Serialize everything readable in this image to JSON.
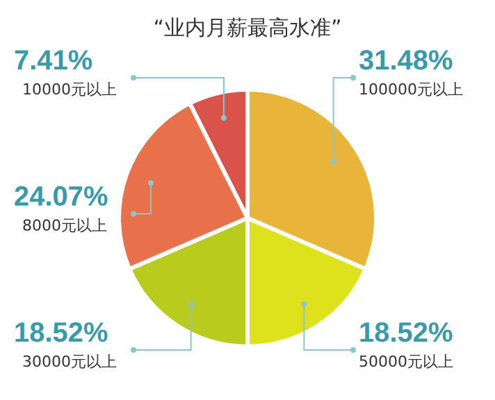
{
  "chart_data": {
    "type": "pie",
    "title": "“业内月薪最高水准”",
    "categories": [
      "100000元以上",
      "50000元以上",
      "30000元以上",
      "8000元以上",
      "10000元以上"
    ],
    "values": [
      31.48,
      18.52,
      18.52,
      24.07,
      7.41
    ],
    "value_labels": [
      "31.48%",
      "18.52%",
      "18.52%",
      "24.07%",
      "7.41%"
    ],
    "colors": [
      "#e8b43a",
      "#dde21c",
      "#b9cc1e",
      "#e8704a",
      "#d9534a"
    ],
    "legend": false
  }
}
